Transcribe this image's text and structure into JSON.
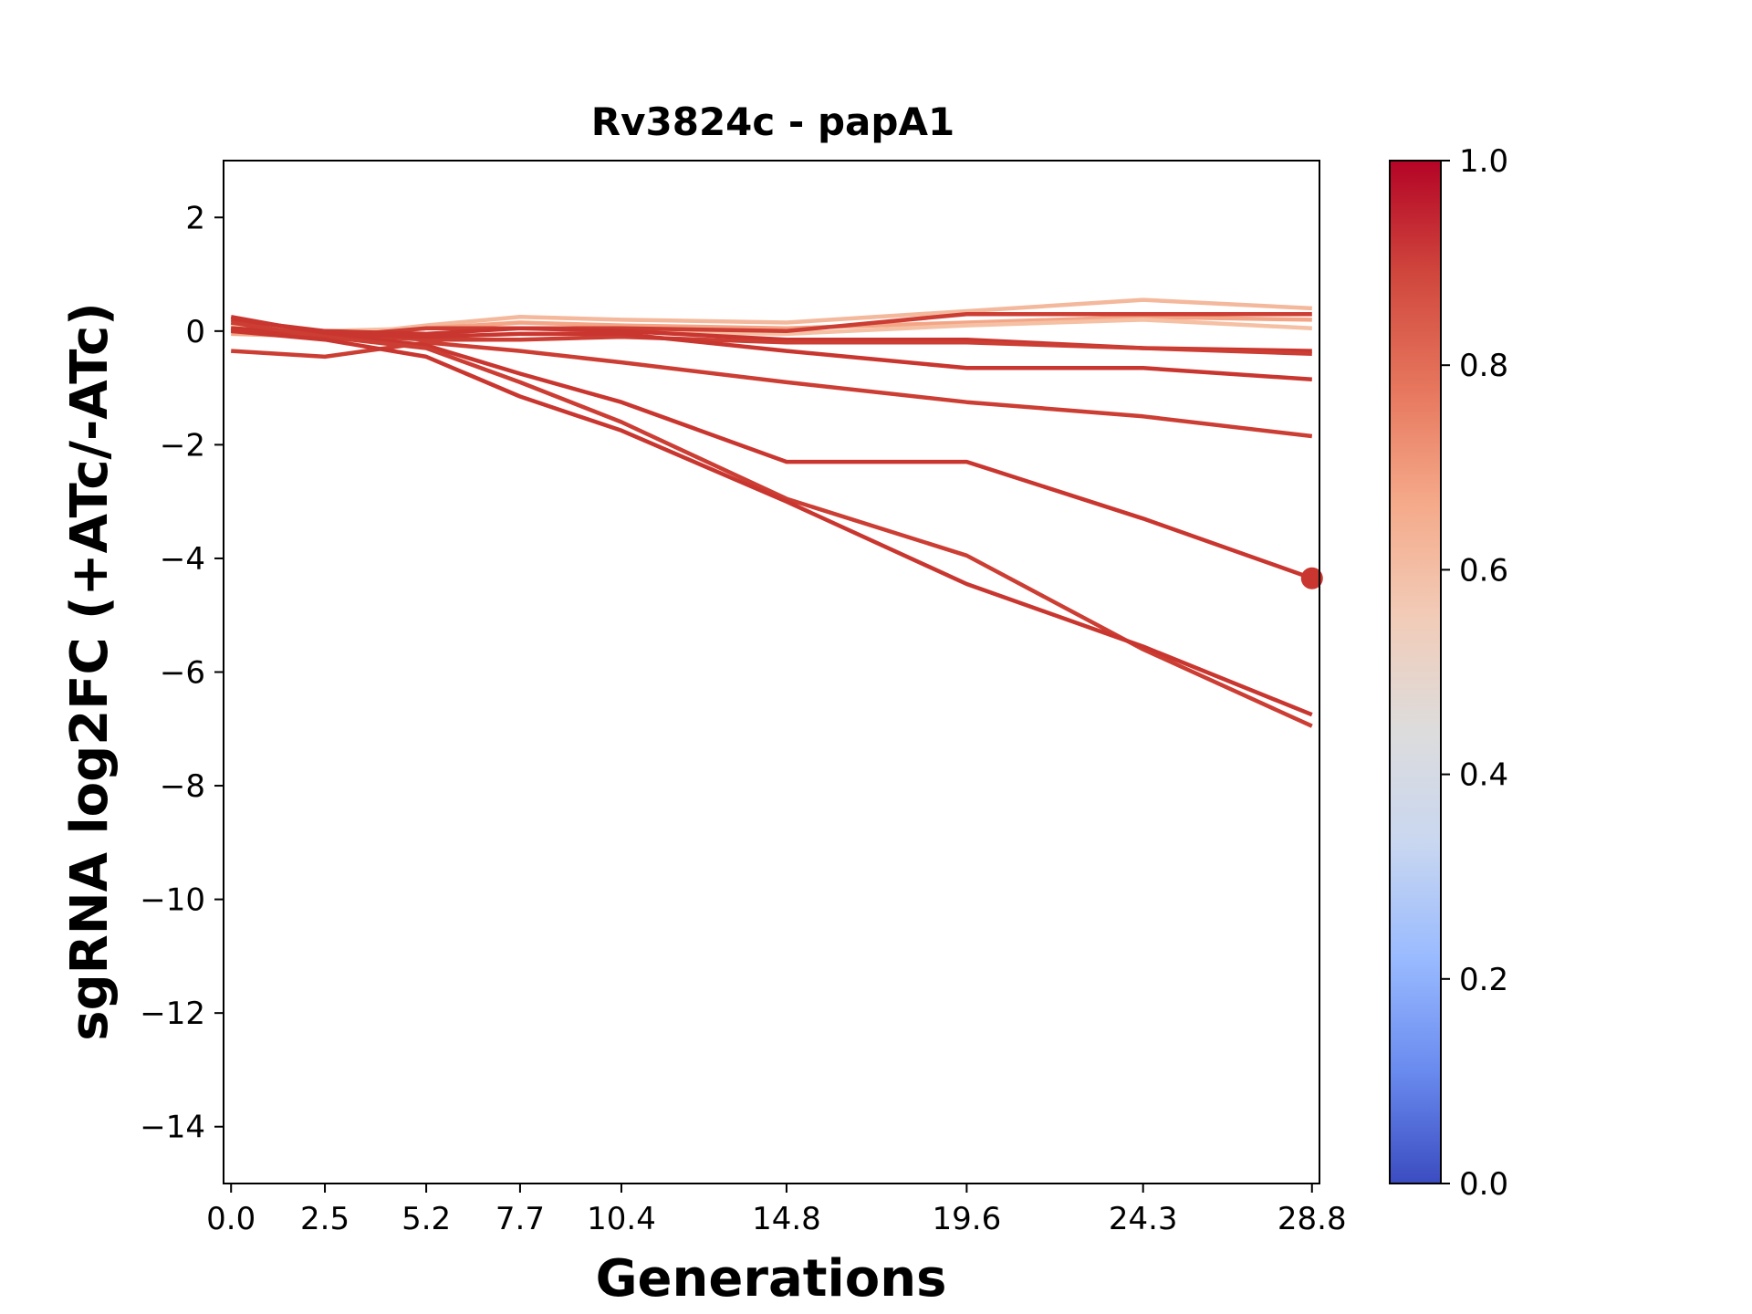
{
  "chart_data": {
    "type": "line",
    "title": "Rv3824c - papA1",
    "xlabel": "Generations",
    "ylabel": "sgRNA log2FC (+ATc/-ATc)",
    "x": [
      0.0,
      2.5,
      5.2,
      7.7,
      10.4,
      14.8,
      19.6,
      24.3,
      28.8
    ],
    "x_tick_labels": [
      "0.0",
      "2.5",
      "5.2",
      "7.7",
      "10.4",
      "14.8",
      "19.6",
      "24.3",
      "28.8"
    ],
    "xlim": [
      -0.2,
      29.0
    ],
    "ylim": [
      -15,
      3
    ],
    "y_ticks": [
      2,
      0,
      -2,
      -4,
      -6,
      -8,
      -10,
      -12,
      -14
    ],
    "y_tick_labels": [
      "2",
      "0",
      "−2",
      "−4",
      "−6",
      "−8",
      "−10",
      "−12",
      "−14"
    ],
    "grid": false,
    "series": [
      {
        "color": "#f4b89c",
        "values": [
          0.0,
          -0.1,
          0.1,
          0.25,
          0.2,
          0.15,
          0.35,
          0.55,
          0.4
        ]
      },
      {
        "color": "#f4a586",
        "values": [
          -0.05,
          -0.1,
          0.05,
          0.15,
          0.1,
          0.05,
          0.15,
          0.25,
          0.2
        ]
      },
      {
        "color": "#f5c0a4",
        "values": [
          0.1,
          0.0,
          0.05,
          0.05,
          0.0,
          -0.05,
          0.1,
          0.2,
          0.05
        ]
      },
      {
        "color": "#cc3d33",
        "values": [
          0.05,
          -0.1,
          0.05,
          0.05,
          0.05,
          0.0,
          0.3,
          0.3,
          0.3
        ]
      },
      {
        "color": "#c9362f",
        "values": [
          0.2,
          0.0,
          -0.05,
          0.05,
          0.0,
          -0.15,
          -0.15,
          -0.3,
          -0.35
        ]
      },
      {
        "color": "#cc3d33",
        "values": [
          0.0,
          -0.05,
          -0.15,
          -0.15,
          -0.1,
          -0.2,
          -0.2,
          -0.3,
          -0.4
        ]
      },
      {
        "color": "#c9362f",
        "values": [
          0.05,
          -0.05,
          -0.1,
          -0.05,
          -0.05,
          -0.35,
          -0.65,
          -0.65,
          -0.85
        ]
      },
      {
        "color": "#cc3d33",
        "values": [
          -0.35,
          -0.45,
          -0.2,
          -0.35,
          -0.55,
          -0.9,
          -1.25,
          -1.5,
          -1.85
        ]
      },
      {
        "color": "#c9362f",
        "values": [
          0.25,
          -0.05,
          -0.25,
          -0.75,
          -1.25,
          -2.3,
          -2.3,
          -3.3,
          -4.35
        ],
        "marker_last": true
      },
      {
        "color": "#cc3d33",
        "values": [
          0.15,
          -0.1,
          -0.3,
          -0.9,
          -1.6,
          -2.95,
          -3.95,
          -5.6,
          -6.95
        ]
      },
      {
        "color": "#c9362f",
        "values": [
          0.0,
          -0.15,
          -0.45,
          -1.15,
          -1.75,
          -3.0,
          -4.45,
          -5.55,
          -6.75
        ]
      }
    ],
    "colorbar": {
      "range": [
        0.0,
        1.0
      ],
      "tick_labels": [
        "1.0",
        "0.8",
        "0.6",
        "0.4",
        "0.2",
        "0.0"
      ],
      "tick_values": [
        1.0,
        0.8,
        0.6,
        0.4,
        0.2,
        0.0
      ],
      "colormap": "coolwarm",
      "stops": [
        "#3b4cc0",
        "#6a8bef",
        "#9abbff",
        "#c9d7f0",
        "#dddcdc",
        "#f2cbb7",
        "#f5a989",
        "#e6765d",
        "#d0473d",
        "#b40426"
      ]
    }
  }
}
